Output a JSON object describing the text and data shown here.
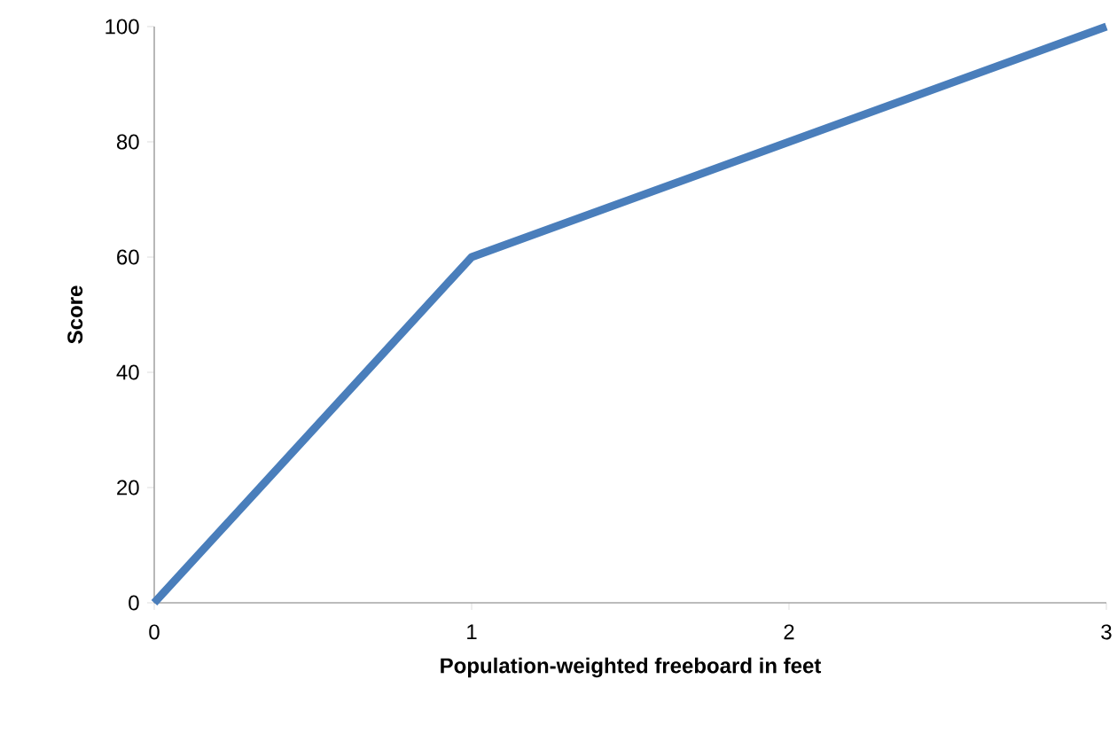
{
  "chart_data": {
    "type": "line",
    "xlabel": "Population-weighted freeboard in feet",
    "ylabel": "Score",
    "x": [
      0,
      1,
      2,
      3
    ],
    "series": [
      {
        "color": "#4a7ebb",
        "values": [
          0,
          60,
          80,
          100
        ]
      }
    ],
    "xlim": [
      0,
      3
    ],
    "ylim": [
      0,
      100
    ],
    "xticks": [
      0,
      1,
      2,
      3
    ],
    "yticks": [
      0,
      20,
      40,
      60,
      80,
      100
    ]
  }
}
